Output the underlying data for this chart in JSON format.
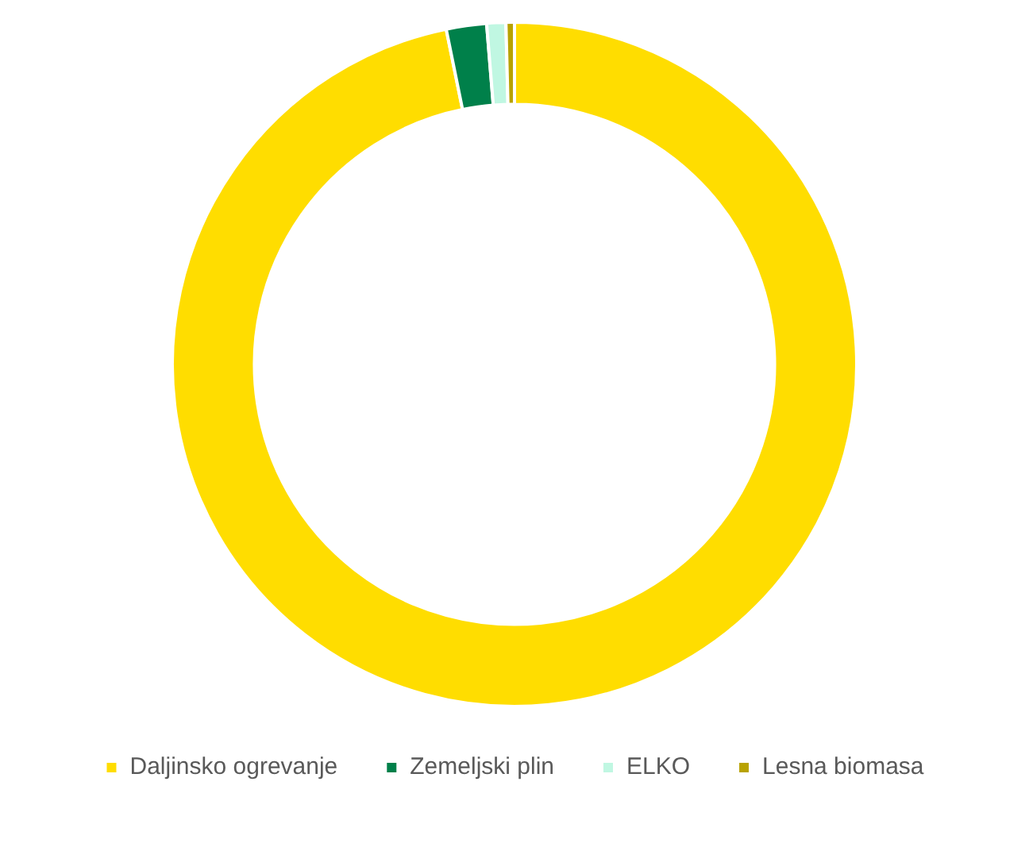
{
  "chart_data": {
    "type": "donut",
    "categories": [
      "Daljinsko ogrevanje",
      "Zemeljski plin",
      "ELKO",
      "Lesna biomasa"
    ],
    "values": [
      96.8,
      1.9,
      0.9,
      0.4
    ],
    "colors": [
      "#ffdd00",
      "#00804a",
      "#c0f7e2",
      "#b8a200"
    ],
    "legend": "bottom"
  }
}
